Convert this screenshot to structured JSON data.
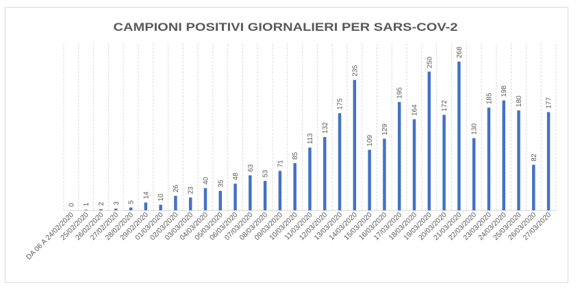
{
  "chart_data": {
    "type": "bar",
    "title": "CAMPIONI POSITIVI GIORNALIERI PER SARS-COV-2",
    "xlabel": "",
    "ylabel": "",
    "categories": [
      "DA 06 A 24/02/2020",
      "25/02/2020",
      "26/02/2020",
      "27/02/2020",
      "28/02/2020",
      "29/02/2020",
      "01/03/2020",
      "02/03/2020",
      "03/03/2020",
      "04/03/2020",
      "05/03/2020",
      "06/03/2020",
      "07/03/2020",
      "08/03/2020",
      "09/03/2020",
      "10/03/2020",
      "11/03/2020",
      "12/03/2020",
      "13/03/2020",
      "14/03/2020",
      "15/03/2020",
      "16/03/2020",
      "17/03/2020",
      "18/03/2020",
      "19/03/2020",
      "20/03/2020",
      "21/03/2020",
      "22/03/2020",
      "23/03/2020",
      "24/03/2020",
      "25/03/2020",
      "26/03/2020",
      "27/03/2020"
    ],
    "values": [
      0,
      1,
      2,
      3,
      5,
      14,
      10,
      26,
      23,
      40,
      35,
      48,
      63,
      53,
      71,
      85,
      113,
      132,
      175,
      235,
      109,
      129,
      195,
      164,
      250,
      172,
      268,
      130,
      185,
      198,
      180,
      82,
      177
    ],
    "ylim": [
      0,
      300
    ],
    "grid": {
      "vertical": true,
      "horizontal": false
    },
    "data_labels": true
  },
  "colors": {
    "bar": "#4472C4",
    "text": "#595959",
    "grid": "#D9D9D9",
    "border": "#D9D9D9",
    "background": "#FFFFFF"
  }
}
